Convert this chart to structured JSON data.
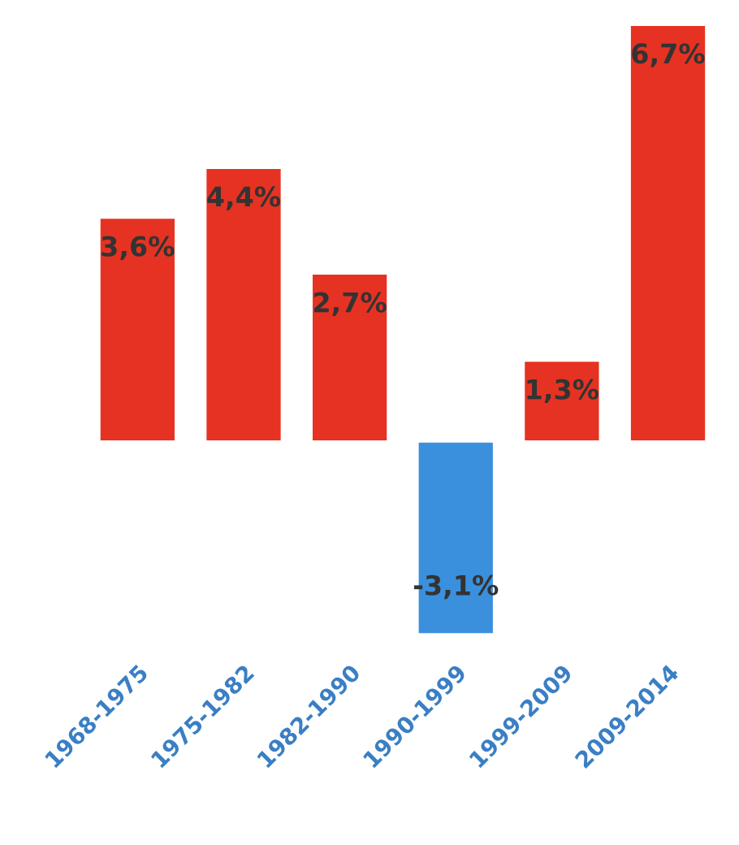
{
  "chart_data": {
    "type": "bar",
    "categories": [
      "1968-1975",
      "1975-1982",
      "1982-1990",
      "1990-1999",
      "1999-2009",
      "2009-2014"
    ],
    "values": [
      3.6,
      4.4,
      2.7,
      -3.1,
      1.3,
      6.7
    ],
    "colors": [
      "#e63222",
      "#e63222",
      "#e63222",
      "#3a90dc",
      "#e63222",
      "#e63222"
    ],
    "value_labels": [
      "3,6%",
      "4,4%",
      "2,7%",
      "-3,1%",
      "1,3%",
      "6,7%"
    ],
    "tick_labels": "x",
    "grid": false,
    "legend": false
  }
}
